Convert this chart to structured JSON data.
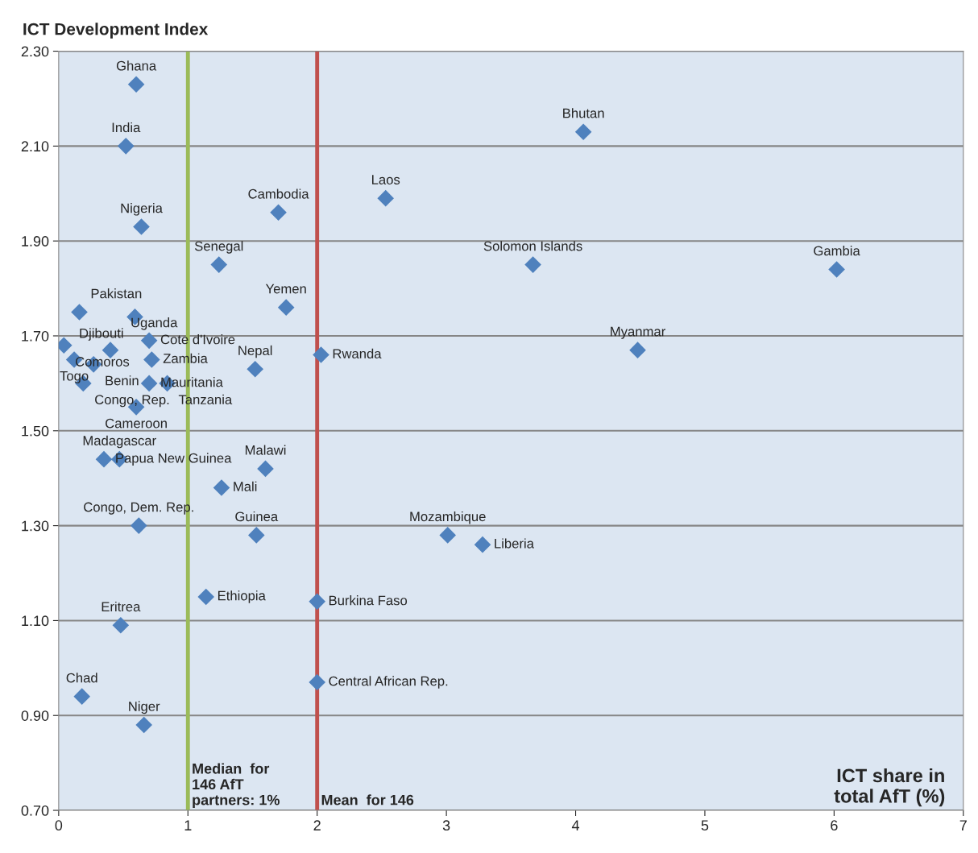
{
  "chart_data": {
    "type": "scatter",
    "ylabel": "ICT Development Index",
    "xlabel": "ICT share in\ntotal AfT (%)",
    "x": [
      0.6,
      0.52,
      0.64,
      1.24,
      1.7,
      2.53,
      4.06,
      3.67,
      6.02,
      4.48,
      1.76,
      2.03,
      1.52,
      0.16,
      0.59,
      0.04,
      0.12,
      0.27,
      0.4,
      0.7,
      0.72,
      0.19,
      0.7,
      0.84,
      0.6,
      0.35,
      0.47,
      1.26,
      1.6,
      0.62,
      1.53,
      3.01,
      3.28,
      1.14,
      2.0,
      0.48,
      0.18,
      0.66,
      2.0
    ],
    "series": [
      {
        "color": "#4f81bd",
        "values": [
          2.23,
          2.1,
          1.93,
          1.85,
          1.96,
          1.99,
          2.13,
          1.85,
          1.84,
          1.67,
          1.76,
          1.66,
          1.63,
          1.75,
          1.74,
          1.68,
          1.65,
          1.64,
          1.67,
          1.69,
          1.65,
          1.6,
          1.6,
          1.6,
          1.55,
          1.44,
          1.44,
          1.38,
          1.42,
          1.3,
          1.28,
          1.28,
          1.26,
          1.15,
          1.14,
          1.09,
          0.94,
          0.88,
          0.97
        ]
      }
    ],
    "annotations": [
      {
        "text": "Ghana",
        "x": 0.6,
        "y": 2.23
      },
      {
        "text": "India",
        "x": 0.52,
        "y": 2.1
      },
      {
        "text": "Nigeria",
        "x": 0.64,
        "y": 1.93
      },
      {
        "text": "Senegal",
        "x": 1.24,
        "y": 1.85
      },
      {
        "text": "Cambodia",
        "x": 1.7,
        "y": 1.96
      },
      {
        "text": "Laos",
        "x": 2.53,
        "y": 1.99
      },
      {
        "text": "Bhutan",
        "x": 4.06,
        "y": 2.13
      },
      {
        "text": "Solomon Islands",
        "x": 3.67,
        "y": 1.85
      },
      {
        "text": "Gambia",
        "x": 6.02,
        "y": 1.84
      },
      {
        "text": "Myanmar",
        "x": 4.48,
        "y": 1.67
      },
      {
        "text": "Yemen",
        "x": 1.76,
        "y": 1.76
      },
      {
        "text": "Rwanda",
        "x": 2.03,
        "y": 1.66
      },
      {
        "text": "Nepal",
        "x": 1.52,
        "y": 1.63
      },
      {
        "text": "Pakistan",
        "x": 0.16,
        "y": 1.75
      },
      {
        "text": "Djibouti",
        "x": 0.59,
        "y": 1.74
      },
      {
        "text": "Comoros",
        "x": 0.04,
        "y": 1.68
      },
      {
        "text": "Togo",
        "x": 0.12,
        "y": 1.65
      },
      {
        "text": "Benin",
        "x": 0.27,
        "y": 1.64
      },
      {
        "text": "Uganda",
        "x": 0.4,
        "y": 1.67
      },
      {
        "text": "Cote d'Ivoire",
        "x": 0.7,
        "y": 1.69
      },
      {
        "text": "Zambia",
        "x": 0.72,
        "y": 1.65
      },
      {
        "text": "Congo, Rep.",
        "x": 0.19,
        "y": 1.6
      },
      {
        "text": "Mauritania",
        "x": 0.7,
        "y": 1.6
      },
      {
        "text": "Tanzania",
        "x": 0.84,
        "y": 1.6
      },
      {
        "text": "Cameroon",
        "x": 0.6,
        "y": 1.55
      },
      {
        "text": "Papua New Guinea",
        "x": 0.35,
        "y": 1.44
      },
      {
        "text": "Madagascar",
        "x": 0.47,
        "y": 1.44
      },
      {
        "text": "Mali",
        "x": 1.26,
        "y": 1.38
      },
      {
        "text": "Malawi",
        "x": 1.6,
        "y": 1.42
      },
      {
        "text": "Congo, Dem. Rep.",
        "x": 0.62,
        "y": 1.3
      },
      {
        "text": "Guinea",
        "x": 1.53,
        "y": 1.28
      },
      {
        "text": "Mozambique",
        "x": 3.01,
        "y": 1.28
      },
      {
        "text": "Liberia",
        "x": 3.28,
        "y": 1.26
      },
      {
        "text": "Ethiopia",
        "x": 1.14,
        "y": 1.15
      },
      {
        "text": "Burkina Faso",
        "x": 2.0,
        "y": 1.14
      },
      {
        "text": "Eritrea",
        "x": 0.48,
        "y": 1.09
      },
      {
        "text": "Chad",
        "x": 0.18,
        "y": 0.94
      },
      {
        "text": "Niger",
        "x": 0.66,
        "y": 0.88
      },
      {
        "text": "Central African Rep.",
        "x": 2.0,
        "y": 0.97
      }
    ],
    "marker": "diamond",
    "xlim": [
      0,
      7
    ],
    "xticks": [
      0,
      1,
      2,
      3,
      4,
      5,
      6,
      7
    ],
    "ylim": [
      0.7,
      2.3
    ],
    "yticks": [
      {
        "value": 0.7,
        "label": "0.70"
      },
      {
        "value": 0.9,
        "label": "0.90"
      },
      {
        "value": 1.1,
        "label": "1.10"
      },
      {
        "value": 1.3,
        "label": "1.30"
      },
      {
        "value": 1.5,
        "label": "1.50"
      },
      {
        "value": 1.7,
        "label": "1.70"
      },
      {
        "value": 1.9,
        "label": "1.90"
      },
      {
        "value": 2.1,
        "label": "2.10"
      },
      {
        "value": 2.3,
        "label": "2.30"
      }
    ],
    "grid": "y",
    "ref_lines": [
      {
        "axis": "x",
        "value": 1,
        "label": "Median  for\n146 AfT\npartners: 1%",
        "color": "#9bbb59"
      },
      {
        "axis": "x",
        "value": 2,
        "label": "Mean  for 146",
        "color": "#c0504d"
      }
    ]
  }
}
